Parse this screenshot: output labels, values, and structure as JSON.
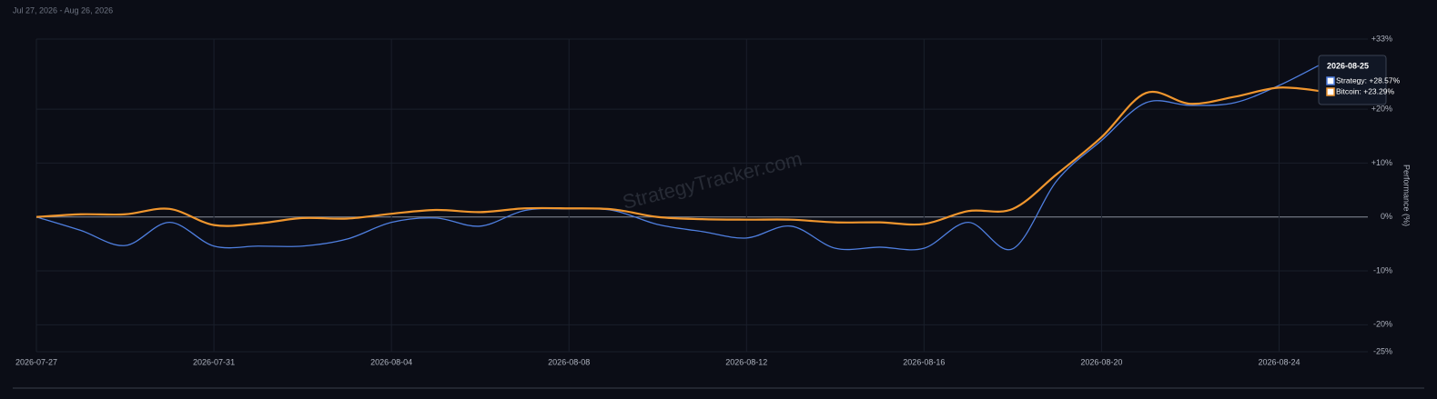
{
  "chart_data": {
    "type": "line",
    "subtitle": "Jul 27, 2026 - Aug 26, 2026",
    "y_label": "Performance (%)",
    "watermark": "StrategyTracker.com",
    "x": [
      "2026-07-27",
      "2026-07-28",
      "2026-07-29",
      "2026-07-30",
      "2026-07-31",
      "2026-08-01",
      "2026-08-02",
      "2026-08-03",
      "2026-08-04",
      "2026-08-05",
      "2026-08-06",
      "2026-08-07",
      "2026-08-08",
      "2026-08-09",
      "2026-08-10",
      "2026-08-11",
      "2026-08-12",
      "2026-08-13",
      "2026-08-14",
      "2026-08-15",
      "2026-08-16",
      "2026-08-17",
      "2026-08-18",
      "2026-08-19",
      "2026-08-20",
      "2026-08-21",
      "2026-08-22",
      "2026-08-23",
      "2026-08-24",
      "2026-08-25"
    ],
    "xlim": [
      "2026-07-27",
      "2026-08-26"
    ],
    "xticks": [
      "2026-07-27",
      "2026-07-31",
      "2026-08-04",
      "2026-08-08",
      "2026-08-12",
      "2026-08-16",
      "2026-08-20",
      "2026-08-24"
    ],
    "series": [
      {
        "color": "#4f7fe0",
        "values": [
          0,
          -2.5,
          -5.3,
          -1.0,
          -5.4,
          -5.4,
          -5.4,
          -4.1,
          -1.0,
          -0.2,
          -1.7,
          1.2,
          1.5,
          1.2,
          -1.4,
          -2.7,
          -3.9,
          -1.7,
          -5.8,
          -5.6,
          -5.8,
          -1.0,
          -5.9,
          6.8,
          14.2,
          21.2,
          20.7,
          21.2,
          24.4,
          28.57
        ]
      },
      {
        "color": "#f0962e",
        "values": [
          0,
          0.5,
          0.5,
          1.5,
          -1.5,
          -1.2,
          -0.2,
          -0.3,
          0.6,
          1.3,
          0.9,
          1.6,
          1.6,
          1.4,
          0.0,
          -0.4,
          -0.5,
          -0.5,
          -1.0,
          -1.0,
          -1.3,
          1.1,
          1.5,
          8.0,
          14.8,
          23.0,
          21.0,
          22.3,
          24.0,
          23.29
        ]
      }
    ],
    "ylim": [
      -25,
      33
    ],
    "yticks": [
      {
        "value": -25,
        "label": "-25%"
      },
      {
        "value": -20,
        "label": "-20%"
      },
      {
        "value": -10,
        "label": "-10%"
      },
      {
        "value": 0,
        "label": "0%"
      },
      {
        "value": 10,
        "label": "+10%"
      },
      {
        "value": 20,
        "label": "+20%"
      },
      {
        "value": 33,
        "label": "+33%"
      }
    ],
    "grid": true,
    "tooltip": {
      "title": "2026-08-25",
      "lines": [
        "Strategy: +28.57%",
        "Bitcoin: +23.29%"
      ]
    }
  }
}
